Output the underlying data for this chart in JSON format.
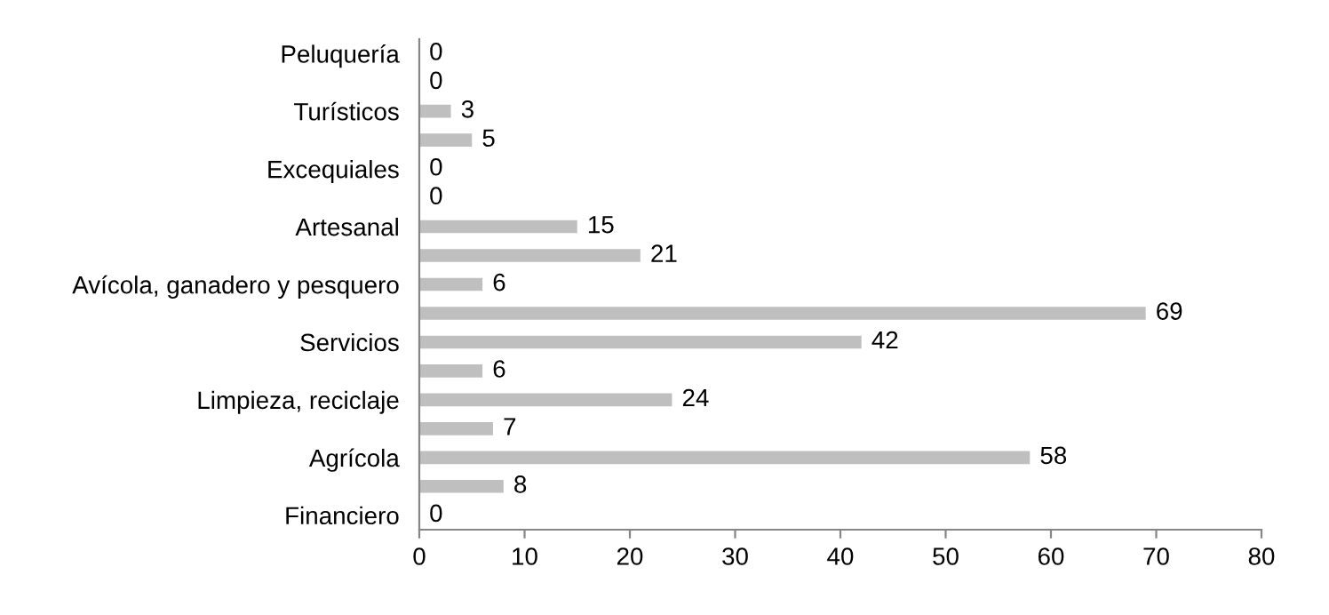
{
  "chart_data": {
    "type": "bar",
    "orientation": "horizontal",
    "categories": [
      "Peluquería",
      null,
      "Turísticos",
      null,
      "Excequiales",
      null,
      "Artesanal",
      null,
      "Avícola, ganadero y pesquero",
      null,
      "Servicios",
      null,
      "Limpieza, reciclaje",
      null,
      "Agrícola",
      null,
      "Financiero"
    ],
    "values": [
      0,
      0,
      3,
      5,
      0,
      0,
      15,
      21,
      6,
      69,
      42,
      6,
      24,
      7,
      58,
      8,
      0
    ],
    "color": "#bfbfbf",
    "xlim": [
      0,
      80
    ],
    "xticks": [
      0,
      10,
      20,
      30,
      40,
      50,
      60,
      70,
      80
    ],
    "grid": false,
    "data_labels": true
  }
}
